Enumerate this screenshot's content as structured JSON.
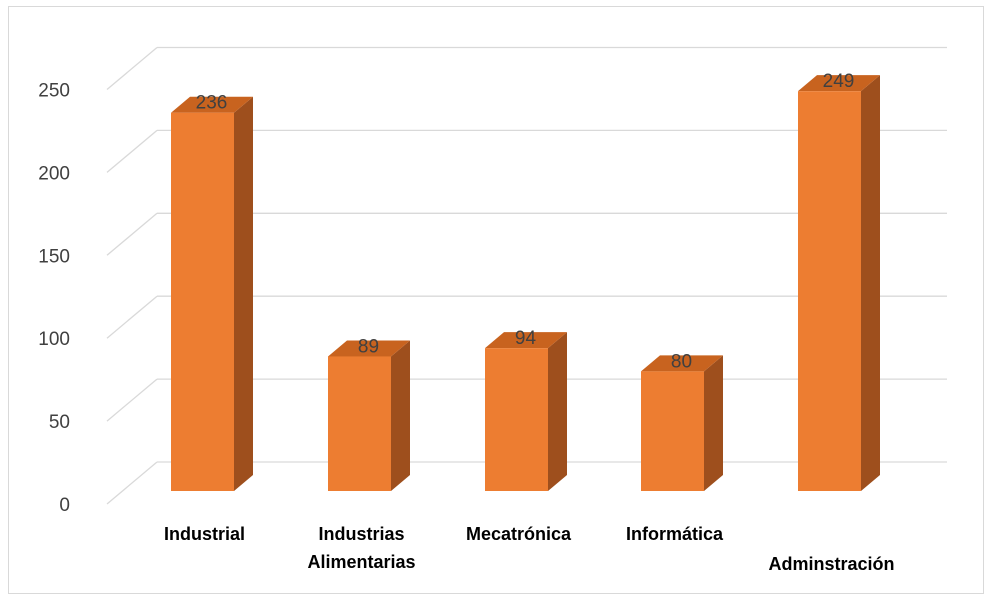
{
  "chart_data": {
    "type": "bar",
    "three_d": true,
    "categories": [
      [
        "Industrial"
      ],
      [
        "Industrias",
        "Alimentarias"
      ],
      [
        "Mecatrónica"
      ],
      [
        "Informática"
      ],
      [
        "Adminstración"
      ]
    ],
    "values": [
      236,
      89,
      94,
      80,
      249
    ],
    "data_labels": [
      "236",
      "89",
      "94",
      "80",
      "249"
    ],
    "ylim": [
      0,
      250
    ],
    "yticks": [
      0,
      50,
      100,
      150,
      200,
      250
    ],
    "grid": true,
    "legend": "none",
    "colors": {
      "bar_front": "#ED7D31",
      "bar_side": "#9E4F1D",
      "bar_top": "#C8631F",
      "grid": "#D9D9D9",
      "text": "#404040"
    }
  }
}
